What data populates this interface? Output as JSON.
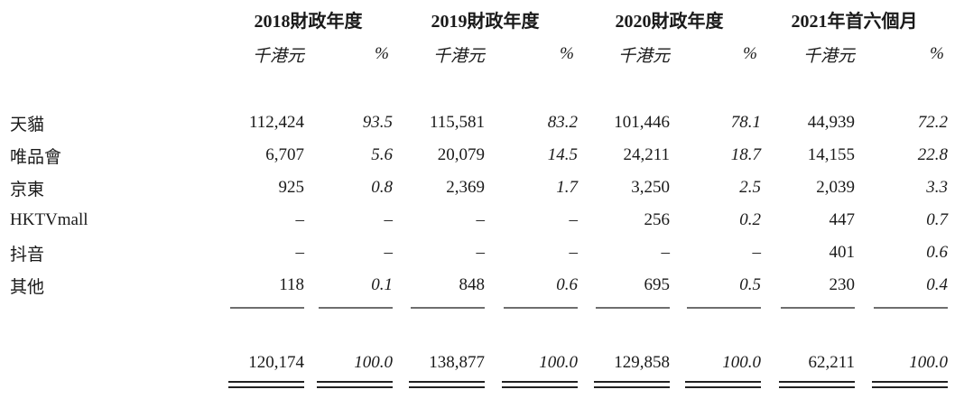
{
  "table": {
    "col_groups": [
      {
        "title": "2018財政年度",
        "unit": "千港元",
        "pct": "%"
      },
      {
        "title": "2019財政年度",
        "unit": "千港元",
        "pct": "%"
      },
      {
        "title": "2020財政年度",
        "unit": "千港元",
        "pct": "%"
      },
      {
        "title": "2021年首六個月",
        "unit": "千港元",
        "pct": "%"
      }
    ],
    "rows": [
      {
        "label": "天貓",
        "values": [
          "112,424",
          "93.5",
          "115,581",
          "83.2",
          "101,446",
          "78.1",
          "44,939",
          "72.2"
        ]
      },
      {
        "label": "唯品會",
        "values": [
          "6,707",
          "5.6",
          "20,079",
          "14.5",
          "24,211",
          "18.7",
          "14,155",
          "22.8"
        ]
      },
      {
        "label": "京東",
        "values": [
          "925",
          "0.8",
          "2,369",
          "1.7",
          "3,250",
          "2.5",
          "2,039",
          "3.3"
        ]
      },
      {
        "label": "HKTVmall",
        "values": [
          "–",
          "–",
          "–",
          "–",
          "256",
          "0.2",
          "447",
          "0.7"
        ]
      },
      {
        "label": "抖音",
        "values": [
          "–",
          "–",
          "–",
          "–",
          "–",
          "–",
          "401",
          "0.6"
        ]
      },
      {
        "label": "其他",
        "values": [
          "118",
          "0.1",
          "848",
          "0.6",
          "695",
          "0.5",
          "230",
          "0.4"
        ]
      }
    ],
    "total": {
      "values": [
        "120,174",
        "100.0",
        "138,877",
        "100.0",
        "129,858",
        "100.0",
        "62,211",
        "100.0"
      ]
    },
    "colors": {
      "text": "#1a1a1a",
      "rule_single": "#6e6e6e",
      "rule_double": "#222222",
      "background": "#ffffff"
    }
  }
}
